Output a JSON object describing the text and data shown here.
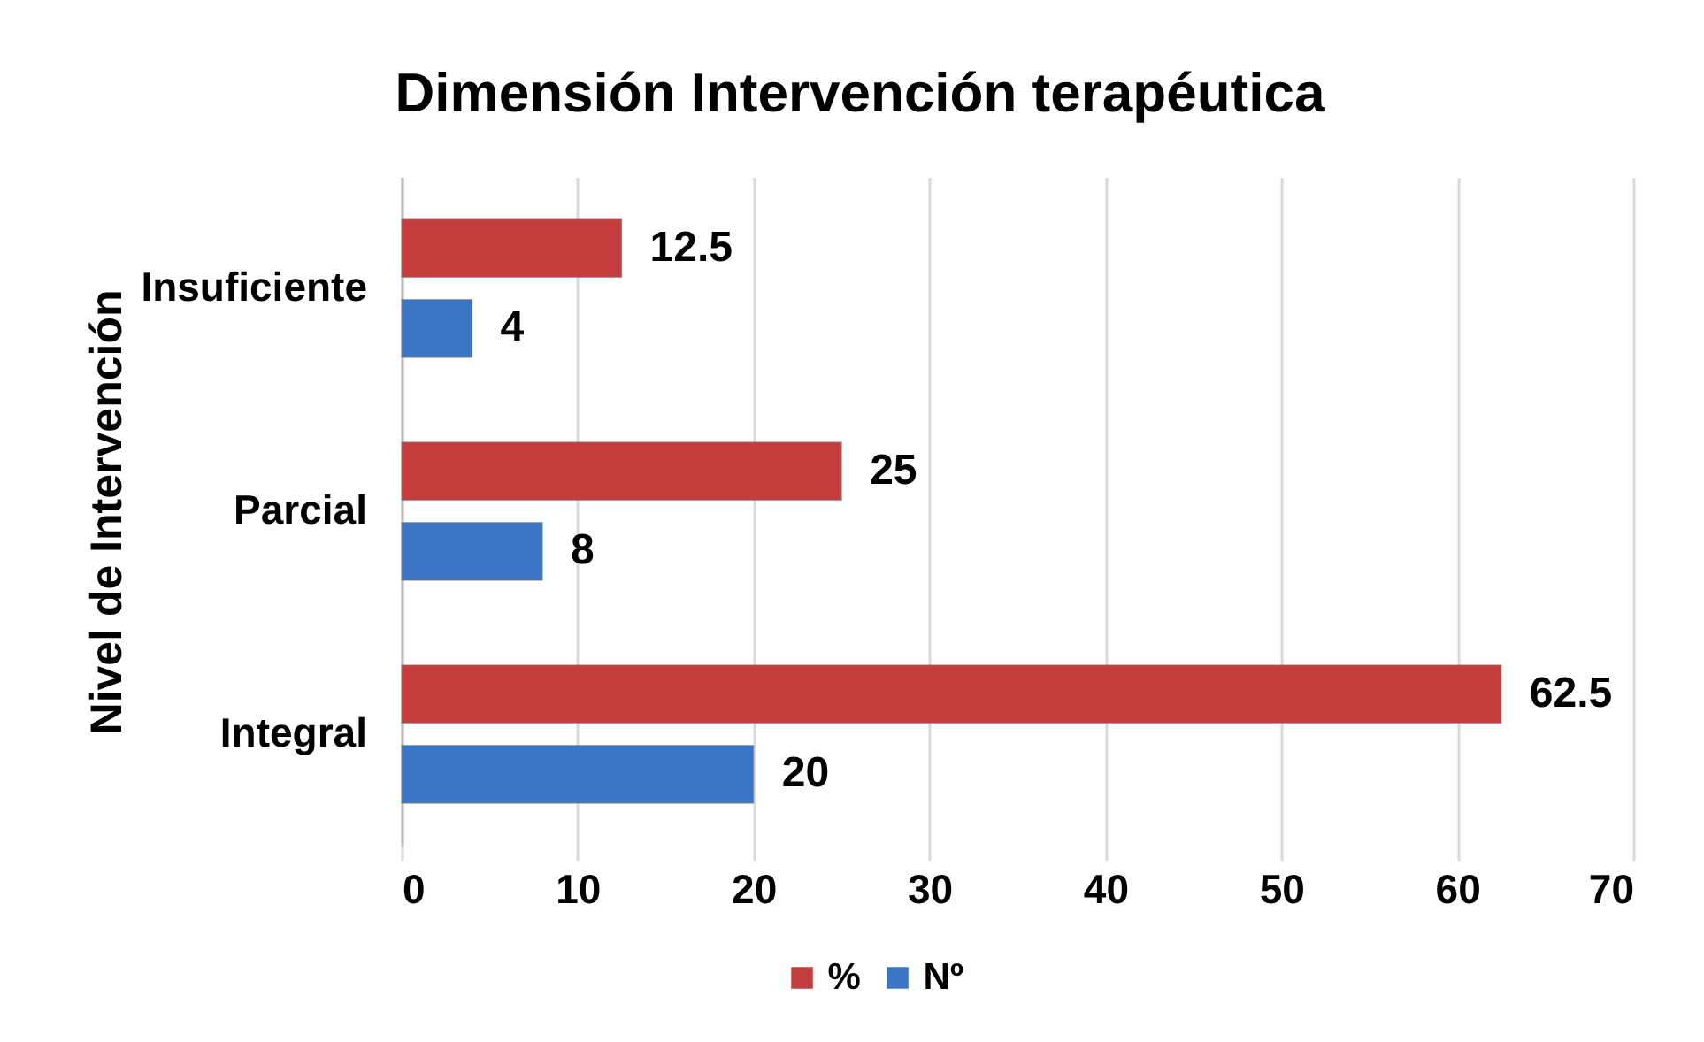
{
  "chart_data": {
    "type": "bar",
    "orientation": "horizontal",
    "title": "Dimensión Intervención terapéutica",
    "ylabel": "Nivel de Intervención",
    "categories": [
      "Insuficiente",
      "Parcial",
      "Integral"
    ],
    "series": [
      {
        "name": "%",
        "color": "#c43c3c",
        "values": [
          12.5,
          25,
          62.5
        ]
      },
      {
        "name": "Nº",
        "color": "#3a76c4",
        "values": [
          4,
          8,
          20
        ]
      }
    ],
    "xlim": [
      0,
      70
    ],
    "xticks": [
      0,
      10,
      20,
      30,
      40,
      50,
      60,
      70
    ],
    "grid": "x",
    "legend": "bottom",
    "data_labels": true
  }
}
